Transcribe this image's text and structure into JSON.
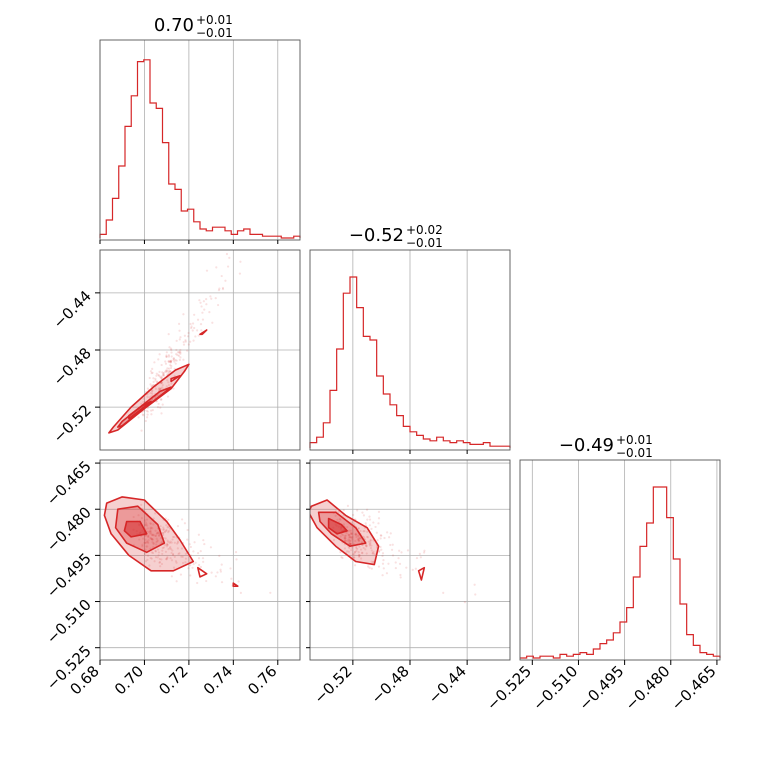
{
  "chart_data": {
    "type": "corner",
    "color": "#d62728",
    "grid": true,
    "parameters": [
      {
        "title_value": "0.70",
        "title_plus": "+0.01",
        "title_minus": "−0.01",
        "range": [
          0.68,
          0.77
        ],
        "ticks": [
          0.68,
          0.7,
          0.72,
          0.74,
          0.76
        ],
        "tick_labels": [
          "0.68",
          "0.70",
          "0.72",
          "0.74",
          "0.76"
        ],
        "hist": [
          0.02,
          0.1,
          0.22,
          0.4,
          0.62,
          0.79,
          0.98,
          0.99,
          0.75,
          0.72,
          0.53,
          0.3,
          0.27,
          0.15,
          0.16,
          0.09,
          0.05,
          0.04,
          0.06,
          0.06,
          0.04,
          0.02,
          0.04,
          0.05,
          0.02,
          0.02,
          0.01,
          0.01,
          0.01,
          0.0,
          0.0,
          0.01
        ]
      },
      {
        "title_value": "−0.52",
        "title_plus": "+0.02",
        "title_minus": "−0.01",
        "range": [
          -0.55,
          -0.41
        ],
        "ticks": [
          -0.52,
          -0.48,
          -0.44
        ],
        "tick_labels": [
          "−0.52",
          "−0.48",
          "−0.44"
        ],
        "hist": [
          0.03,
          0.06,
          0.14,
          0.32,
          0.55,
          0.86,
          0.95,
          0.78,
          0.62,
          0.6,
          0.4,
          0.3,
          0.24,
          0.18,
          0.12,
          0.09,
          0.07,
          0.05,
          0.04,
          0.06,
          0.04,
          0.03,
          0.04,
          0.03,
          0.02,
          0.02,
          0.03,
          0.01,
          0.01,
          0.01
        ]
      },
      {
        "title_value": "−0.49",
        "title_plus": "+0.01",
        "title_minus": "−0.01",
        "range": [
          -0.529,
          -0.464
        ],
        "ticks": [
          -0.525,
          -0.51,
          -0.495,
          -0.48,
          -0.465
        ],
        "tick_labels": [
          "−0.525",
          "−0.510",
          "−0.495",
          "−0.480",
          "−0.465"
        ],
        "hist": [
          0.0,
          0.01,
          0.0,
          0.01,
          0.01,
          0.0,
          0.02,
          0.01,
          0.02,
          0.03,
          0.02,
          0.05,
          0.08,
          0.1,
          0.14,
          0.2,
          0.28,
          0.45,
          0.62,
          0.75,
          0.95,
          0.95,
          0.78,
          0.55,
          0.3,
          0.13,
          0.07,
          0.03,
          0.02,
          0.01
        ]
      }
    ],
    "pairs": [
      {
        "x": 0,
        "y": 1,
        "contours": [
          [
            [
              0.688,
              -0.536
            ],
            [
              0.7,
              -0.521
            ],
            [
              0.712,
              -0.507
            ],
            [
              0.718,
              -0.495
            ],
            [
              0.72,
              -0.49
            ],
            [
              0.714,
              -0.494
            ],
            [
              0.704,
              -0.506
            ],
            [
              0.694,
              -0.52
            ],
            [
              0.686,
              -0.534
            ],
            [
              0.684,
              -0.538
            ]
          ],
          [
            [
              0.69,
              -0.533
            ],
            [
              0.699,
              -0.522
            ],
            [
              0.708,
              -0.511
            ],
            [
              0.712,
              -0.506
            ],
            [
              0.707,
              -0.509
            ],
            [
              0.698,
              -0.52
            ],
            [
              0.69,
              -0.53
            ],
            [
              0.688,
              -0.534
            ]
          ],
          [
            [
              0.693,
              -0.528
            ],
            [
              0.699,
              -0.521
            ],
            [
              0.703,
              -0.516
            ],
            [
              0.699,
              -0.519
            ],
            [
              0.693,
              -0.526
            ]
          ],
          [
            [
              0.712,
              -0.502
            ],
            [
              0.716,
              -0.498
            ],
            [
              0.712,
              -0.5
            ]
          ],
          [
            [
              0.725,
              -0.469
            ],
            [
              0.728,
              -0.466
            ],
            [
              0.726,
              -0.469
            ]
          ]
        ]
      },
      {
        "x": 0,
        "y": 2,
        "contours": [
          [
            [
              0.683,
              -0.478
            ],
            [
              0.69,
              -0.476
            ],
            [
              0.7,
              -0.477
            ],
            [
              0.71,
              -0.484
            ],
            [
              0.716,
              -0.49
            ],
            [
              0.722,
              -0.497
            ],
            [
              0.713,
              -0.5
            ],
            [
              0.703,
              -0.5
            ],
            [
              0.693,
              -0.495
            ],
            [
              0.685,
              -0.488
            ],
            [
              0.682,
              -0.482
            ]
          ],
          [
            [
              0.688,
              -0.48
            ],
            [
              0.697,
              -0.479
            ],
            [
              0.706,
              -0.485
            ],
            [
              0.709,
              -0.491
            ],
            [
              0.701,
              -0.494
            ],
            [
              0.692,
              -0.491
            ],
            [
              0.687,
              -0.486
            ]
          ],
          [
            [
              0.692,
              -0.484
            ],
            [
              0.698,
              -0.484
            ],
            [
              0.701,
              -0.488
            ],
            [
              0.694,
              -0.489
            ],
            [
              0.691,
              -0.487
            ]
          ],
          [
            [
              0.724,
              -0.499
            ],
            [
              0.728,
              -0.501
            ],
            [
              0.725,
              -0.502
            ]
          ],
          [
            [
              0.74,
              -0.504
            ],
            [
              0.742,
              -0.505
            ],
            [
              0.74,
              -0.505
            ]
          ]
        ]
      },
      {
        "x": 1,
        "y": 2,
        "contours": [
          [
            [
              -0.549,
              -0.479
            ],
            [
              -0.538,
              -0.477
            ],
            [
              -0.525,
              -0.482
            ],
            [
              -0.51,
              -0.486
            ],
            [
              -0.502,
              -0.492
            ],
            [
              -0.505,
              -0.498
            ],
            [
              -0.518,
              -0.497
            ],
            [
              -0.532,
              -0.492
            ],
            [
              -0.545,
              -0.486
            ],
            [
              -0.551,
              -0.481
            ]
          ],
          [
            [
              -0.544,
              -0.481
            ],
            [
              -0.532,
              -0.481
            ],
            [
              -0.518,
              -0.486
            ],
            [
              -0.511,
              -0.491
            ],
            [
              -0.522,
              -0.492
            ],
            [
              -0.535,
              -0.488
            ],
            [
              -0.543,
              -0.484
            ]
          ],
          [
            [
              -0.537,
              -0.483
            ],
            [
              -0.528,
              -0.485
            ],
            [
              -0.524,
              -0.487
            ],
            [
              -0.531,
              -0.488
            ],
            [
              -0.537,
              -0.486
            ]
          ],
          [
            [
              -0.474,
              -0.5
            ],
            [
              -0.47,
              -0.499
            ],
            [
              -0.472,
              -0.503
            ]
          ]
        ]
      }
    ],
    "scatter_seed": 11
  }
}
